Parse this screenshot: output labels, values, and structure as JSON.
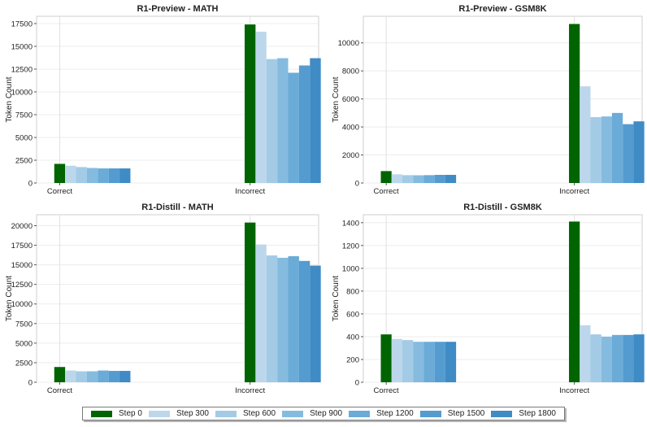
{
  "legend": {
    "placement": "bottom-center",
    "items": [
      {
        "label": "Step 0",
        "color": "#006400"
      },
      {
        "label": "Step 300",
        "color": "#bcd7ec"
      },
      {
        "label": "Step 600",
        "color": "#a3cbe6"
      },
      {
        "label": "Step 900",
        "color": "#85bbdf"
      },
      {
        "label": "Step 1200",
        "color": "#6aabd8"
      },
      {
        "label": "Step 1500",
        "color": "#549bd0"
      },
      {
        "label": "Step 1800",
        "color": "#3f8bc6"
      }
    ]
  },
  "chart_data": [
    {
      "type": "bar",
      "title": "R1-Preview - MATH",
      "xlabel": "",
      "ylabel": "Token Count",
      "categories": [
        "Correct",
        "Incorrect"
      ],
      "ylim": [
        0,
        18300
      ],
      "yticks": [
        0,
        2500,
        5000,
        7500,
        10000,
        12500,
        15000,
        17500
      ],
      "grid": true,
      "series": [
        {
          "name": "Step 0",
          "values": [
            2100,
            17400
          ]
        },
        {
          "name": "Step 300",
          "values": [
            1900,
            16600
          ]
        },
        {
          "name": "Step 600",
          "values": [
            1750,
            13600
          ]
        },
        {
          "name": "Step 900",
          "values": [
            1650,
            13700
          ]
        },
        {
          "name": "Step 1200",
          "values": [
            1600,
            12100
          ]
        },
        {
          "name": "Step 1500",
          "values": [
            1600,
            12900
          ]
        },
        {
          "name": "Step 1800",
          "values": [
            1600,
            13700
          ]
        }
      ]
    },
    {
      "type": "bar",
      "title": "R1-Preview - GSM8K",
      "xlabel": "",
      "ylabel": "Token Count",
      "categories": [
        "Correct",
        "Incorrect"
      ],
      "ylim": [
        0,
        11900
      ],
      "yticks": [
        0,
        2000,
        4000,
        6000,
        8000,
        10000
      ],
      "grid": true,
      "series": [
        {
          "name": "Step 0",
          "values": [
            850,
            11350
          ]
        },
        {
          "name": "Step 300",
          "values": [
            620,
            6900
          ]
        },
        {
          "name": "Step 600",
          "values": [
            560,
            4700
          ]
        },
        {
          "name": "Step 900",
          "values": [
            550,
            4750
          ]
        },
        {
          "name": "Step 1200",
          "values": [
            560,
            5000
          ]
        },
        {
          "name": "Step 1500",
          "values": [
            580,
            4200
          ]
        },
        {
          "name": "Step 1800",
          "values": [
            580,
            4400
          ]
        }
      ]
    },
    {
      "type": "bar",
      "title": "R1-Distill - MATH",
      "xlabel": "",
      "ylabel": "Token Count",
      "categories": [
        "Correct",
        "Incorrect"
      ],
      "ylim": [
        0,
        21400
      ],
      "yticks": [
        0,
        2500,
        5000,
        7500,
        10000,
        12500,
        15000,
        17500,
        20000
      ],
      "grid": true,
      "series": [
        {
          "name": "Step 0",
          "values": [
            1950,
            20400
          ]
        },
        {
          "name": "Step 300",
          "values": [
            1500,
            17600
          ]
        },
        {
          "name": "Step 600",
          "values": [
            1400,
            16200
          ]
        },
        {
          "name": "Step 900",
          "values": [
            1400,
            15900
          ]
        },
        {
          "name": "Step 1200",
          "values": [
            1500,
            16100
          ]
        },
        {
          "name": "Step 1500",
          "values": [
            1450,
            15500
          ]
        },
        {
          "name": "Step 1800",
          "values": [
            1450,
            14900
          ]
        }
      ]
    },
    {
      "type": "bar",
      "title": "R1-Distill - GSM8K",
      "xlabel": "",
      "ylabel": "Token Count",
      "categories": [
        "Correct",
        "Incorrect"
      ],
      "ylim": [
        0,
        1470
      ],
      "yticks": [
        0,
        200,
        400,
        600,
        800,
        1000,
        1200,
        1400
      ],
      "grid": true,
      "series": [
        {
          "name": "Step 0",
          "values": [
            420,
            1410
          ]
        },
        {
          "name": "Step 300",
          "values": [
            380,
            500
          ]
        },
        {
          "name": "Step 600",
          "values": [
            370,
            420
          ]
        },
        {
          "name": "Step 900",
          "values": [
            355,
            400
          ]
        },
        {
          "name": "Step 1200",
          "values": [
            355,
            415
          ]
        },
        {
          "name": "Step 1500",
          "values": [
            355,
            415
          ]
        },
        {
          "name": "Step 1800",
          "values": [
            355,
            420
          ]
        }
      ]
    }
  ]
}
